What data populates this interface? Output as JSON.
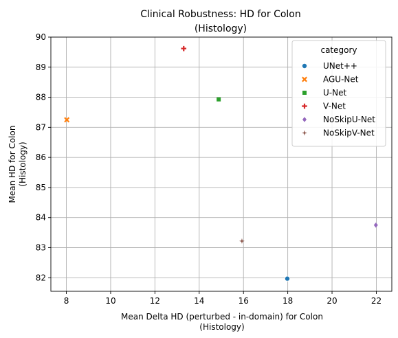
{
  "chart_data": {
    "type": "scatter",
    "title": [
      "Clinical Robustness: HD for Colon",
      "(Histology)"
    ],
    "xlabel": [
      "Mean Delta HD (perturbed - in-domain) for Colon",
      "(Histology)"
    ],
    "ylabel": [
      "Mean HD for Colon",
      "(Histology)"
    ],
    "xlim": [
      7.3,
      22.7
    ],
    "ylim": [
      81.55,
      90.0
    ],
    "xticks": [
      8,
      10,
      12,
      14,
      16,
      18,
      20,
      22
    ],
    "yticks": [
      82,
      83,
      84,
      85,
      86,
      87,
      88,
      89,
      90
    ],
    "grid": true,
    "legend": {
      "title": "category",
      "placement": "top-right"
    },
    "series": [
      {
        "name": "UNet++",
        "marker": "circle",
        "color": "#1f77b4",
        "x": 17.98,
        "y": 81.97
      },
      {
        "name": "AGU-Net",
        "marker": "x",
        "color": "#ff7f0e",
        "x": 8.02,
        "y": 87.25
      },
      {
        "name": "U-Net",
        "marker": "square",
        "color": "#2ca02c",
        "x": 14.88,
        "y": 87.93
      },
      {
        "name": "V-Net",
        "marker": "plus",
        "color": "#d62728",
        "x": 13.3,
        "y": 89.62
      },
      {
        "name": "NoSkipU-Net",
        "marker": "diamond",
        "color": "#9467bd",
        "x": 21.98,
        "y": 83.75
      },
      {
        "name": "NoSkipV-Net",
        "marker": "star",
        "color": "#8c564b",
        "x": 15.93,
        "y": 83.22
      }
    ]
  }
}
